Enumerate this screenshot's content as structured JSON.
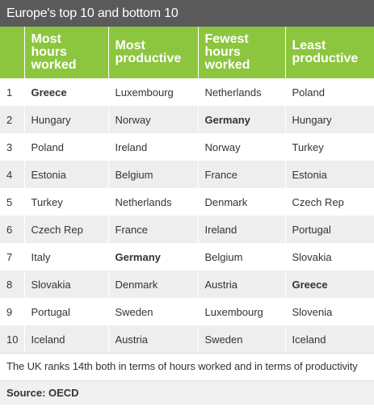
{
  "title": "Europe's top 10 and bottom 10",
  "headers": [
    "",
    "Most\nhours\nworked",
    "Most\nproductive",
    "Fewest\nhours\nworked",
    "Least\nproductive"
  ],
  "rows": [
    {
      "rank": "1",
      "cells": [
        {
          "text": "Greece",
          "bold": true
        },
        {
          "text": "Luxembourg",
          "bold": false
        },
        {
          "text": "Netherlands",
          "bold": false
        },
        {
          "text": "Poland",
          "bold": false
        }
      ]
    },
    {
      "rank": "2",
      "cells": [
        {
          "text": "Hungary",
          "bold": false
        },
        {
          "text": "Norway",
          "bold": false
        },
        {
          "text": "Germany",
          "bold": true
        },
        {
          "text": "Hungary",
          "bold": false
        }
      ]
    },
    {
      "rank": "3",
      "cells": [
        {
          "text": "Poland",
          "bold": false
        },
        {
          "text": "Ireland",
          "bold": false
        },
        {
          "text": "Norway",
          "bold": false
        },
        {
          "text": "Turkey",
          "bold": false
        }
      ]
    },
    {
      "rank": "4",
      "cells": [
        {
          "text": "Estonia",
          "bold": false
        },
        {
          "text": "Belgium",
          "bold": false
        },
        {
          "text": "France",
          "bold": false
        },
        {
          "text": "Estonia",
          "bold": false
        }
      ]
    },
    {
      "rank": "5",
      "cells": [
        {
          "text": "Turkey",
          "bold": false
        },
        {
          "text": "Netherlands",
          "bold": false
        },
        {
          "text": "Denmark",
          "bold": false
        },
        {
          "text": "Czech Rep",
          "bold": false
        }
      ]
    },
    {
      "rank": "6",
      "cells": [
        {
          "text": "Czech Rep",
          "bold": false
        },
        {
          "text": "France",
          "bold": false
        },
        {
          "text": "Ireland",
          "bold": false
        },
        {
          "text": "Portugal",
          "bold": false
        }
      ]
    },
    {
      "rank": "7",
      "cells": [
        {
          "text": "Italy",
          "bold": false
        },
        {
          "text": "Germany",
          "bold": true
        },
        {
          "text": "Belgium",
          "bold": false
        },
        {
          "text": "Slovakia",
          "bold": false
        }
      ]
    },
    {
      "rank": "8",
      "cells": [
        {
          "text": "Slovakia",
          "bold": false
        },
        {
          "text": "Denmark",
          "bold": false
        },
        {
          "text": "Austria",
          "bold": false
        },
        {
          "text": "Greece",
          "bold": true
        }
      ]
    },
    {
      "rank": "9",
      "cells": [
        {
          "text": "Portugal",
          "bold": false
        },
        {
          "text": "Sweden",
          "bold": false
        },
        {
          "text": "Luxembourg",
          "bold": false
        },
        {
          "text": "Slovenia",
          "bold": false
        }
      ]
    },
    {
      "rank": "10",
      "cells": [
        {
          "text": "Iceland",
          "bold": false
        },
        {
          "text": "Austria",
          "bold": false
        },
        {
          "text": "Sweden",
          "bold": false
        },
        {
          "text": "Iceland",
          "bold": false
        }
      ]
    }
  ],
  "note": "The UK ranks 14th both in terms of hours worked and in terms of productivity",
  "source": "Source: OECD",
  "colors": {
    "title_bg": "#5a5a5a",
    "header_bg": "#8cc63f",
    "row_alt_bg": "#eeeeee",
    "source_bg": "#f0f0f0"
  }
}
